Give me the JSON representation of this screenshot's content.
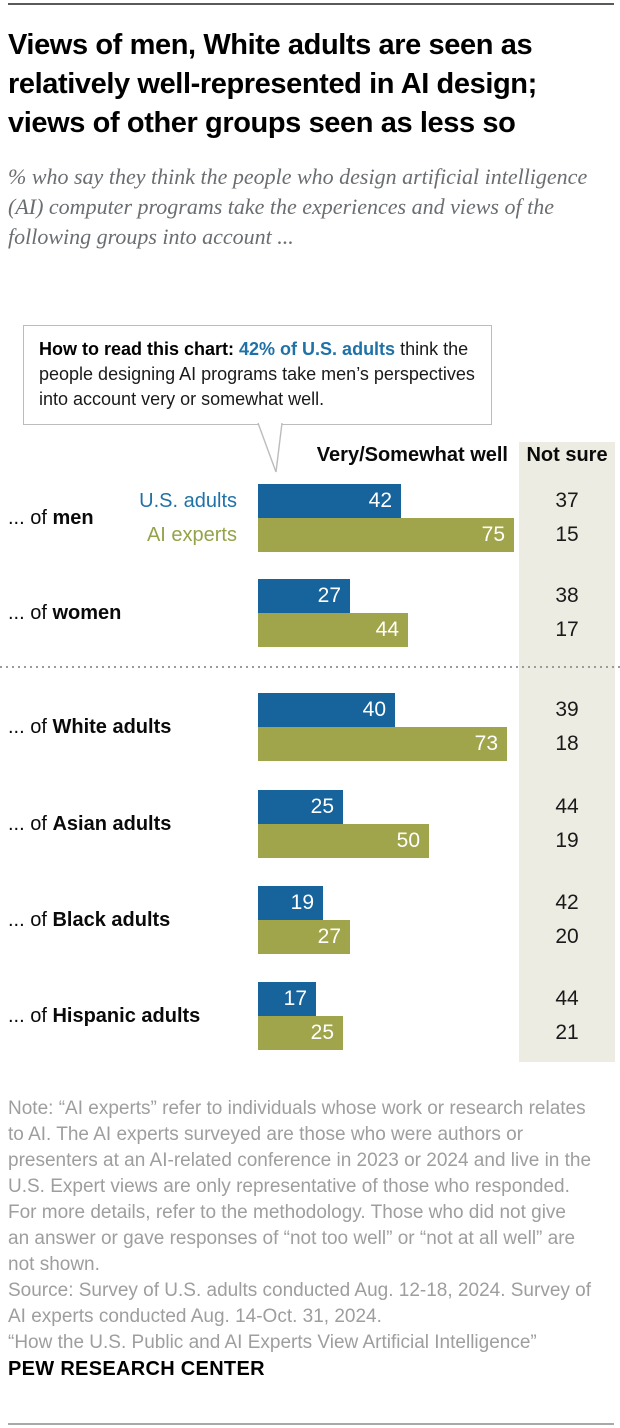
{
  "header": {
    "title": "Views of men, White adults are seen as relatively well-represented in AI design; views of other groups seen as less so",
    "subtitle": "% who say they think the people who design artificial intelligence (AI) computer programs take the experiences and views of the following groups into account ..."
  },
  "callout": {
    "bold": "How to read this chart: ",
    "highlight": "42% of U.S. adults",
    "rest": " think the people designing AI programs take men’s perspectives into account very or somewhat well."
  },
  "chart_data": {
    "type": "bar",
    "orientation": "horizontal",
    "xlim": [
      0,
      100
    ],
    "column_headers": {
      "bars": "Very/Somewhat well",
      "not_sure": "Not sure"
    },
    "legend": [
      {
        "name": "U.S. adults",
        "color": "#17639c"
      },
      {
        "name": "AI experts",
        "color": "#a0a44a"
      }
    ],
    "categories": [
      "men",
      "women",
      "White adults",
      "Asian adults",
      "Black adults",
      "Hispanic adults"
    ],
    "category_prefix": "... of ",
    "series": [
      {
        "name": "U.S. adults",
        "values": [
          42,
          27,
          40,
          25,
          19,
          17
        ],
        "not_sure": [
          37,
          38,
          39,
          44,
          42,
          44
        ]
      },
      {
        "name": "AI experts",
        "values": [
          75,
          44,
          73,
          50,
          27,
          25
        ],
        "not_sure": [
          15,
          17,
          18,
          19,
          20,
          21
        ]
      }
    ],
    "divider_after_category_index": 1
  },
  "colors": {
    "us_adults_bar": "#17639c",
    "ai_experts_bar": "#a0a44a",
    "us_adults_label": "#1f72a8",
    "ai_experts_label": "#94a34a",
    "not_sure_bg": "#edece2",
    "callout_highlight": "#1f72a8",
    "note_text": "#9e9e9e"
  },
  "note": {
    "body": "Note: “AI experts” refer to individuals whose work or research relates to AI. The AI experts surveyed are those who were authors or presenters at an AI-related conference in 2023 or 2024 and live in the U.S. Expert views are only representative of those who responded. For more details, refer to the methodology. Those who did not give an answer or gave responses of “not too well” or “not at all well” are not shown.",
    "source": "Source: Survey of U.S. adults conducted Aug. 12-18, 2024. Survey of AI experts conducted Aug. 14-Oct. 31, 2024.",
    "report": "“How the U.S. Public and AI Experts View Artificial Intelligence”"
  },
  "footer": {
    "brand": "PEW RESEARCH CENTER"
  }
}
